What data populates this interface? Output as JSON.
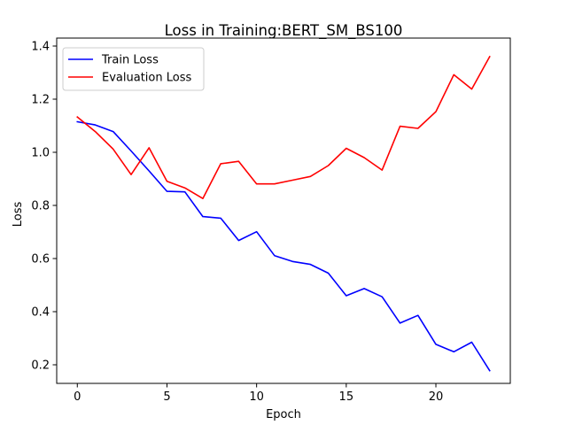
{
  "chart_data": {
    "type": "line",
    "title": "Loss in Training:BERT_SM_BS100",
    "xlabel": "Epoch",
    "ylabel": "Loss",
    "xlim": [
      -1.15,
      24.15
    ],
    "ylim": [
      0.13,
      1.43
    ],
    "xticks": [
      0,
      5,
      10,
      15,
      20
    ],
    "yticks": [
      0.2,
      0.4,
      0.6,
      0.8,
      1.0,
      1.2,
      1.4
    ],
    "ytick_labels": [
      "0.2",
      "0.4",
      "0.6",
      "0.8",
      "1.0",
      "1.2",
      "1.4"
    ],
    "grid": false,
    "legend_position": "upper-left",
    "x": [
      0,
      1,
      2,
      3,
      4,
      5,
      6,
      7,
      8,
      9,
      10,
      11,
      12,
      13,
      14,
      15,
      16,
      17,
      18,
      19,
      20,
      21,
      22,
      23
    ],
    "series": [
      {
        "name": "Train Loss",
        "color": "#0000ff",
        "values": [
          1.115,
          1.103,
          1.078,
          1.005,
          0.93,
          0.853,
          0.851,
          0.758,
          0.752,
          0.668,
          0.701,
          0.611,
          0.589,
          0.578,
          0.545,
          0.46,
          0.487,
          0.456,
          0.357,
          0.386,
          0.277,
          0.249,
          0.285,
          0.178
        ]
      },
      {
        "name": "Evaluation Loss",
        "color": "#ff0000",
        "values": [
          1.133,
          1.078,
          1.012,
          0.916,
          1.017,
          0.891,
          0.866,
          0.826,
          0.957,
          0.966,
          0.881,
          0.881,
          0.895,
          0.909,
          0.95,
          1.015,
          0.98,
          0.933,
          1.098,
          1.09,
          1.153,
          1.292,
          1.238,
          1.36
        ]
      }
    ]
  }
}
